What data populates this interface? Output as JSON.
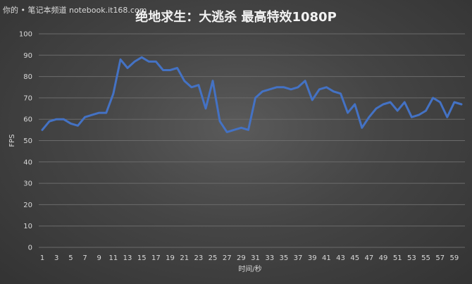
{
  "watermark": "你的 • 笔记本频道 notebook.it168.com",
  "chart_data": {
    "type": "line",
    "title": "绝地求生：大逃杀 最高特效1080P",
    "xlabel": "时间/秒",
    "ylabel": "FPS",
    "ylim": [
      0,
      100
    ],
    "yticks": [
      0,
      10,
      20,
      30,
      40,
      50,
      60,
      70,
      80,
      90,
      100
    ],
    "xlim": [
      1,
      60
    ],
    "xticks": [
      1,
      3,
      5,
      7,
      9,
      11,
      13,
      15,
      17,
      19,
      21,
      23,
      25,
      27,
      29,
      31,
      33,
      35,
      37,
      39,
      41,
      43,
      45,
      47,
      49,
      51,
      53,
      55,
      57,
      59
    ],
    "grid": true,
    "line_color": "#4472c4",
    "series": [
      {
        "x": [
          1,
          2,
          3,
          4,
          5,
          6,
          7,
          8,
          9,
          10,
          11,
          12,
          13,
          14,
          15,
          16,
          17,
          18,
          19,
          20,
          21,
          22,
          23,
          24,
          25,
          26,
          27,
          28,
          29,
          30,
          31,
          32,
          33,
          34,
          35,
          36,
          37,
          38,
          39,
          40,
          41,
          42,
          43,
          44,
          45,
          46,
          47,
          48,
          49,
          50,
          51,
          52,
          53,
          54,
          55,
          56,
          57,
          58,
          59,
          60
        ],
        "values": [
          55,
          59,
          60,
          60,
          58,
          57,
          61,
          62,
          63,
          63,
          72,
          88,
          84,
          87,
          89,
          87,
          87,
          83,
          83,
          84,
          78,
          75,
          76,
          65,
          78,
          59,
          54,
          55,
          56,
          55,
          70,
          73,
          74,
          75,
          75,
          74,
          75,
          78,
          69,
          74,
          75,
          73,
          72,
          63,
          67,
          56,
          61,
          65,
          67,
          68,
          64,
          68,
          61,
          62,
          64,
          70,
          68,
          61,
          68,
          67
        ]
      }
    ]
  }
}
